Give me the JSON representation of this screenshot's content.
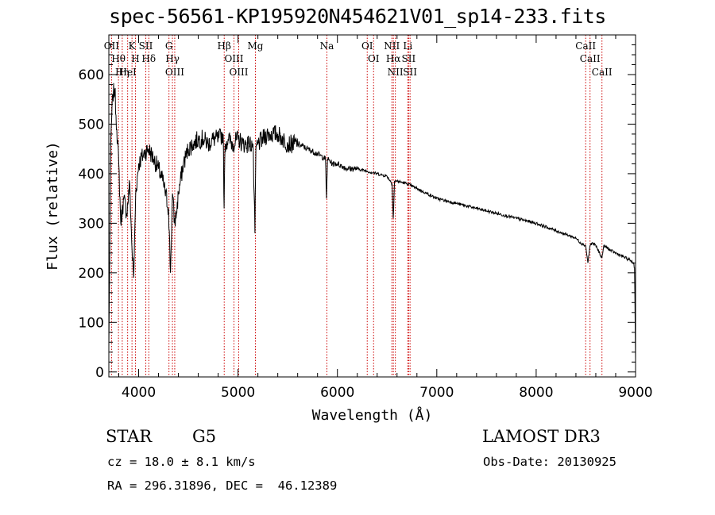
{
  "chart_data": {
    "type": "line",
    "title": "spec-56561-KP195920N454621V01_sp14-233.fits",
    "xlabel": "Wavelength (Å)",
    "ylabel": "Flux (relative)",
    "xlim": [
      3700,
      9000
    ],
    "ylim": [
      -10,
      680
    ],
    "xticks": [
      4000,
      5000,
      6000,
      7000,
      8000,
      9000
    ],
    "yticks": [
      0,
      100,
      200,
      300,
      400,
      500,
      600
    ],
    "series": [
      {
        "name": "spectrum",
        "x": [
          3700,
          3720,
          3740,
          3760,
          3780,
          3800,
          3820,
          3850,
          3880,
          3910,
          3930,
          3950,
          3970,
          4000,
          4050,
          4100,
          4150,
          4200,
          4250,
          4300,
          4320,
          4340,
          4360,
          4380,
          4400,
          4450,
          4500,
          4550,
          4600,
          4650,
          4700,
          4750,
          4800,
          4850,
          4860,
          4870,
          4900,
          4950,
          5000,
          5050,
          5100,
          5150,
          5170,
          5180,
          5200,
          5250,
          5300,
          5350,
          5400,
          5450,
          5500,
          5600,
          5700,
          5800,
          5880,
          5890,
          5900,
          5950,
          6000,
          6100,
          6200,
          6300,
          6400,
          6500,
          6550,
          6562,
          6575,
          6600,
          6700,
          6800,
          6900,
          7000,
          7200,
          7400,
          7600,
          7800,
          8000,
          8200,
          8400,
          8450,
          8498,
          8520,
          8542,
          8560,
          8600,
          8662,
          8680,
          8750,
          8850,
          8950,
          8980,
          8990,
          9000
        ],
        "values": [
          50,
          470,
          560,
          570,
          490,
          420,
          300,
          350,
          320,
          380,
          260,
          190,
          360,
          420,
          440,
          450,
          430,
          410,
          380,
          330,
          200,
          360,
          300,
          320,
          360,
          420,
          450,
          460,
          470,
          470,
          460,
          470,
          470,
          480,
          330,
          460,
          470,
          460,
          470,
          460,
          460,
          460,
          280,
          450,
          460,
          470,
          480,
          480,
          480,
          470,
          460,
          460,
          450,
          440,
          430,
          350,
          430,
          420,
          420,
          410,
          410,
          405,
          400,
          395,
          380,
          310,
          385,
          385,
          380,
          370,
          360,
          350,
          340,
          330,
          320,
          310,
          300,
          285,
          270,
          260,
          255,
          220,
          255,
          260,
          255,
          230,
          255,
          245,
          235,
          225,
          220,
          210,
          20
        ]
      }
    ],
    "emission_lines": [
      {
        "name": "OII",
        "wavelength": 3727
      },
      {
        "name": "Hθ",
        "wavelength": 3797
      },
      {
        "name": "Hη",
        "wavelength": 3835
      },
      {
        "name": "HeI",
        "wavelength": 3889
      },
      {
        "name": "K",
        "wavelength": 3933
      },
      {
        "name": "H",
        "wavelength": 3968
      },
      {
        "name": "SII",
        "wavelength": 4072
      },
      {
        "name": "Hδ",
        "wavelength": 4102
      },
      {
        "name": "G",
        "wavelength": 4305
      },
      {
        "name": "Hγ",
        "wavelength": 4340
      },
      {
        "name": "OIII",
        "wavelength": 4363
      },
      {
        "name": "Hβ",
        "wavelength": 4861
      },
      {
        "name": "OIII",
        "wavelength": 4959
      },
      {
        "name": "OIII",
        "wavelength": 5007
      },
      {
        "name": "Mg",
        "wavelength": 5175
      },
      {
        "name": "Na",
        "wavelength": 5894
      },
      {
        "name": "OI",
        "wavelength": 6300
      },
      {
        "name": "OI",
        "wavelength": 6364
      },
      {
        "name": "NII",
        "wavelength": 6548
      },
      {
        "name": "Hα",
        "wavelength": 6563
      },
      {
        "name": "NII",
        "wavelength": 6583
      },
      {
        "name": "Li",
        "wavelength": 6708
      },
      {
        "name": "SII",
        "wavelength": 6717
      },
      {
        "name": "SII",
        "wavelength": 6731
      },
      {
        "name": "CaII",
        "wavelength": 8498
      },
      {
        "name": "CaII",
        "wavelength": 8542
      },
      {
        "name": "CaII",
        "wavelength": 8662
      }
    ],
    "line_color": "#cc0000"
  },
  "info": {
    "object_class": "STAR",
    "subclass": "G5",
    "survey": "LAMOST DR3",
    "redshift_text": "cz = 18.0 ± 8.1 km/s",
    "obs_date_text": "Obs-Date: 20130925",
    "coords_text": "RA = 296.31896, DEC =  46.12389"
  }
}
